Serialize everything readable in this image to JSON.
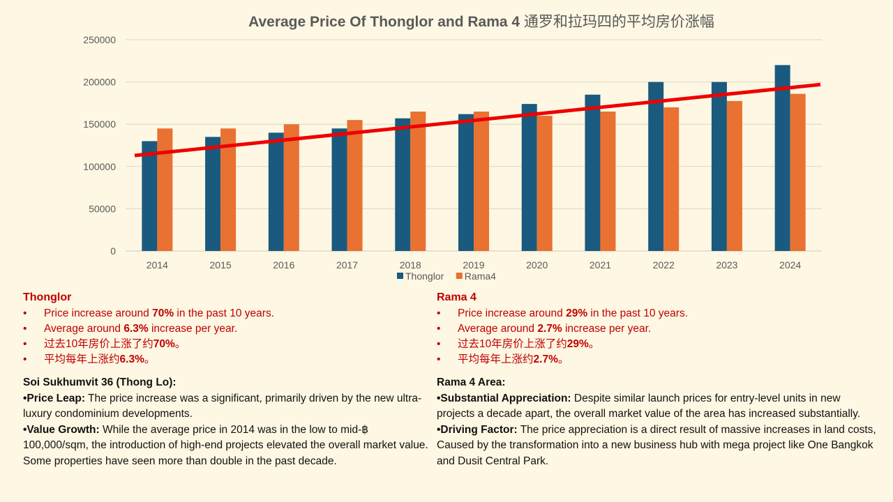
{
  "chart_data": {
    "type": "bar",
    "title": "Average Price Of Thonglor and Rama 4",
    "title_cn": "通罗和拉玛四的平均房价涨幅",
    "categories": [
      "2014",
      "2015",
      "2016",
      "2017",
      "2018",
      "2019",
      "2020",
      "2021",
      "2022",
      "2023",
      "2024"
    ],
    "series": [
      {
        "name": "Thonglor",
        "color": "#1a5a7e",
        "values": [
          130000,
          135000,
          140000,
          145000,
          157000,
          162000,
          174000,
          185000,
          200000,
          200000,
          220000
        ]
      },
      {
        "name": "Rama4",
        "color": "#e97132",
        "values": [
          145000,
          145000,
          150000,
          155000,
          165000,
          165000,
          160000,
          165000,
          170000,
          177500,
          186000
        ]
      }
    ],
    "trendline": {
      "color": "#ee0000",
      "start_value": 113000,
      "end_value": 197000
    },
    "xlabel": "",
    "ylabel": "",
    "ylim": [
      0,
      250000
    ],
    "yticks": [
      "0",
      "50000",
      "100000",
      "150000",
      "200000",
      "250000"
    ],
    "grid": true,
    "legend": "bottom"
  },
  "thonglor_summary": {
    "title": "Thonglor",
    "bullet_char": "•",
    "items": [
      {
        "pre": "Price increase around ",
        "bold": "70%",
        "post": " in the past 10 years."
      },
      {
        "pre": "Average around ",
        "bold": "6.3%",
        "post": " increase per year."
      },
      {
        "pre": "过去10年房价上涨了约",
        "bold": "70%",
        "post": "。"
      },
      {
        "pre": "平均每年上涨约",
        "bold": "6.3%",
        "post": "。"
      }
    ]
  },
  "rama4_summary": {
    "title": "Rama 4",
    "bullet_char": "•",
    "items": [
      {
        "pre": "Price increase around ",
        "bold": "29%",
        "post": " in the past 10 years."
      },
      {
        "pre": "Average around ",
        "bold": "2.7%",
        "post": " increase per year."
      },
      {
        "pre": "过去10年房价上涨了约",
        "bold": "29%",
        "post": "。"
      },
      {
        "pre": "平均每年上涨约",
        "bold": "2.7%",
        "post": "。"
      }
    ]
  },
  "thonglor_detail": {
    "heading": "Soi Sukhumvit 36 (Thong Lo):",
    "points": [
      {
        "label": "•Price Leap:",
        "text": " The price increase was a significant, primarily driven by the new ultra-luxury condominium developments."
      },
      {
        "label": "•Value Growth:",
        "text": " While the average price in 2014 was in the low to mid-฿ 100,000/sqm, the introduction of high-end projects elevated the overall market value. Some properties have seen more than double in the past decade."
      }
    ]
  },
  "rama4_detail": {
    "heading": "Rama 4 Area:",
    "points": [
      {
        "label": "•Substantial Appreciation:",
        "text": " Despite similar launch prices for entry-level units in new projects a decade apart, the overall market value of the area has increased substantially."
      },
      {
        "label": "•Driving Factor:",
        "text": " The price appreciation is a direct result of massive increases in land costs, Caused by the transformation into a new business hub with mega project like One Bangkok and Dusit Central Park."
      }
    ]
  }
}
